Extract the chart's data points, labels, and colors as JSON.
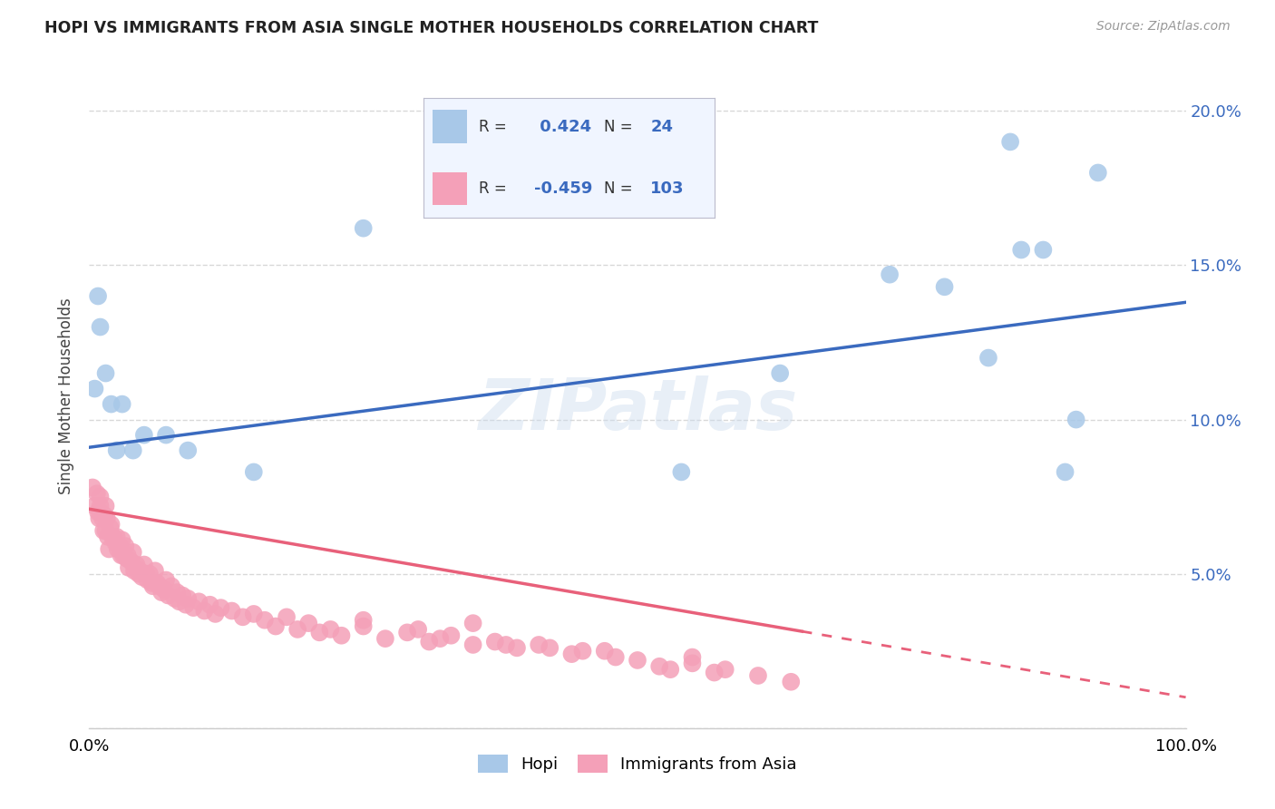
{
  "title": "HOPI VS IMMIGRANTS FROM ASIA SINGLE MOTHER HOUSEHOLDS CORRELATION CHART",
  "source": "Source: ZipAtlas.com",
  "ylabel": "Single Mother Households",
  "watermark": "ZIPatlas",
  "hopi_r": 0.424,
  "hopi_n": 24,
  "asia_r": -0.459,
  "asia_n": 103,
  "hopi_color": "#a8c8e8",
  "asia_color": "#f4a0b8",
  "hopi_line_color": "#3a6abf",
  "asia_line_color": "#e8607a",
  "hopi_x": [
    0.005,
    0.008,
    0.01,
    0.015,
    0.02,
    0.025,
    0.03,
    0.04,
    0.05,
    0.07,
    0.09,
    0.15,
    0.25,
    0.54,
    0.63,
    0.73,
    0.78,
    0.82,
    0.84,
    0.85,
    0.87,
    0.89,
    0.9,
    0.92
  ],
  "hopi_y": [
    0.11,
    0.14,
    0.13,
    0.115,
    0.105,
    0.09,
    0.105,
    0.09,
    0.095,
    0.095,
    0.09,
    0.083,
    0.162,
    0.083,
    0.115,
    0.147,
    0.143,
    0.12,
    0.19,
    0.155,
    0.155,
    0.083,
    0.1,
    0.18
  ],
  "asia_x": [
    0.003,
    0.005,
    0.007,
    0.008,
    0.009,
    0.01,
    0.01,
    0.01,
    0.012,
    0.013,
    0.014,
    0.015,
    0.015,
    0.016,
    0.017,
    0.018,
    0.019,
    0.02,
    0.021,
    0.022,
    0.024,
    0.025,
    0.026,
    0.028,
    0.029,
    0.03,
    0.031,
    0.033,
    0.034,
    0.035,
    0.036,
    0.038,
    0.04,
    0.041,
    0.043,
    0.045,
    0.046,
    0.048,
    0.05,
    0.052,
    0.053,
    0.055,
    0.057,
    0.058,
    0.06,
    0.062,
    0.064,
    0.066,
    0.068,
    0.07,
    0.072,
    0.075,
    0.078,
    0.08,
    0.082,
    0.085,
    0.088,
    0.09,
    0.095,
    0.1,
    0.105,
    0.11,
    0.115,
    0.12,
    0.13,
    0.14,
    0.15,
    0.16,
    0.17,
    0.18,
    0.19,
    0.2,
    0.21,
    0.22,
    0.23,
    0.25,
    0.27,
    0.29,
    0.31,
    0.33,
    0.35,
    0.37,
    0.39,
    0.41,
    0.44,
    0.47,
    0.5,
    0.52,
    0.55,
    0.58,
    0.61,
    0.64,
    0.45,
    0.48,
    0.42,
    0.38,
    0.3,
    0.25,
    0.32,
    0.55,
    0.53,
    0.57,
    0.35
  ],
  "asia_y": [
    0.078,
    0.072,
    0.076,
    0.07,
    0.068,
    0.075,
    0.072,
    0.07,
    0.068,
    0.064,
    0.069,
    0.072,
    0.064,
    0.068,
    0.062,
    0.058,
    0.065,
    0.066,
    0.062,
    0.062,
    0.06,
    0.062,
    0.058,
    0.059,
    0.056,
    0.061,
    0.056,
    0.059,
    0.055,
    0.056,
    0.052,
    0.054,
    0.057,
    0.051,
    0.053,
    0.05,
    0.051,
    0.049,
    0.053,
    0.05,
    0.048,
    0.05,
    0.047,
    0.046,
    0.051,
    0.047,
    0.046,
    0.044,
    0.045,
    0.048,
    0.043,
    0.046,
    0.042,
    0.044,
    0.041,
    0.043,
    0.04,
    0.042,
    0.039,
    0.041,
    0.038,
    0.04,
    0.037,
    0.039,
    0.038,
    0.036,
    0.037,
    0.035,
    0.033,
    0.036,
    0.032,
    0.034,
    0.031,
    0.032,
    0.03,
    0.033,
    0.029,
    0.031,
    0.028,
    0.03,
    0.027,
    0.028,
    0.026,
    0.027,
    0.024,
    0.025,
    0.022,
    0.02,
    0.023,
    0.019,
    0.017,
    0.015,
    0.025,
    0.023,
    0.026,
    0.027,
    0.032,
    0.035,
    0.029,
    0.021,
    0.019,
    0.018,
    0.034
  ],
  "hopi_line_start_y": 0.091,
  "hopi_line_end_y": 0.138,
  "asia_line_start_y": 0.071,
  "asia_line_end_y": 0.01,
  "asia_line_solid_end_x": 0.65,
  "xlim": [
    0.0,
    1.0
  ],
  "ylim": [
    0.0,
    0.215
  ],
  "yticks": [
    0.0,
    0.05,
    0.1,
    0.15,
    0.2
  ],
  "ytick_labels": [
    "",
    "5.0%",
    "10.0%",
    "15.0%",
    "20.0%"
  ],
  "xticks": [
    0.0,
    1.0
  ],
  "xtick_labels": [
    "0.0%",
    "100.0%"
  ],
  "grid_color": "#d8d8d8",
  "background_color": "#ffffff"
}
